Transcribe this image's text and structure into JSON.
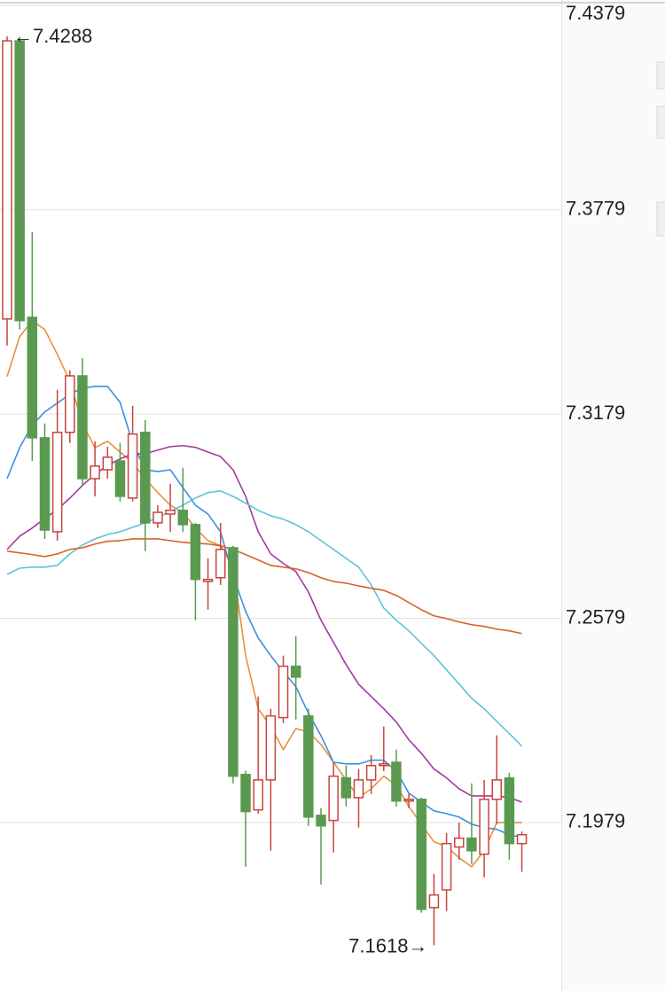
{
  "chart_data": {
    "type": "candlestick",
    "ylim": [
      7.1484,
      7.4395
    ],
    "yticks": [
      7.4379,
      7.3779,
      7.3179,
      7.2579,
      7.1979
    ],
    "grid": true,
    "up_color": "#c8443c",
    "down_color": "#5a9a50",
    "open": [
      7.3458,
      7.4275,
      7.3463,
      7.3109,
      7.2833,
      7.3125,
      7.3291,
      7.2989,
      7.3015,
      7.3041,
      7.2932,
      7.3125,
      7.2859,
      7.2885,
      7.2896,
      7.2854,
      7.2687,
      7.2698,
      7.2786,
      7.212,
      7.2016,
      7.2104,
      7.2287,
      7.2438,
      7.2292,
      7.2,
      7.1985,
      7.211,
      7.2052,
      7.2104,
      7.2146,
      7.2156,
      7.2042,
      7.2047,
      7.1729,
      7.1781,
      7.1907,
      7.1933,
      7.1886,
      7.2047,
      7.211,
      7.1917
    ],
    "high": [
      7.4288,
      7.428,
      7.3713,
      7.3151,
      7.325,
      7.3307,
      7.3343,
      7.3099,
      7.3083,
      7.3094,
      7.3203,
      7.3161,
      7.2911,
      7.2974,
      7.3021,
      7.2859,
      7.2755,
      7.2859,
      7.2792,
      7.2131,
      7.2349,
      7.2313,
      7.2469,
      7.2526,
      7.2313,
      7.2021,
      7.2156,
      7.2146,
      7.2136,
      7.2177,
      7.2261,
      7.2193,
      7.2063,
      7.2052,
      7.1828,
      7.1948,
      7.1979,
      7.2094,
      7.2104,
      7.2235,
      7.2125,
      7.1953
    ],
    "low": [
      7.338,
      7.3427,
      7.3041,
      7.2812,
      7.2807,
      7.3094,
      7.2969,
      7.2937,
      7.2989,
      7.2922,
      7.2922,
      7.2776,
      7.2844,
      7.2833,
      7.2833,
      7.2573,
      7.2604,
      7.2677,
      7.2094,
      7.1849,
      7.2005,
      7.1896,
      7.2271,
      7.2281,
      7.1969,
      7.1797,
      7.1891,
      7.2026,
      7.1964,
      7.2063,
      7.213,
      7.2026,
      7.2021,
      7.1714,
      7.1618,
      7.1719,
      7.187,
      7.1857,
      7.1818,
      7.1974,
      7.187,
      7.1834
    ],
    "close": [
      7.4275,
      7.3453,
      7.3109,
      7.2838,
      7.3125,
      7.3291,
      7.2989,
      7.3026,
      7.3052,
      7.2937,
      7.312,
      7.2859,
      7.289,
      7.2896,
      7.2854,
      7.2693,
      7.2693,
      7.2781,
      7.2115,
      7.2011,
      7.2104,
      7.2292,
      7.2438,
      7.2406,
      7.1995,
      7.1969,
      7.2115,
      7.2052,
      7.2104,
      7.2146,
      7.2151,
      7.2042,
      7.2047,
      7.1724,
      7.1766,
      7.1917,
      7.1933,
      7.1896,
      7.2047,
      7.2104,
      7.1917,
      7.1943
    ],
    "series": [
      {
        "color": "#e8913a",
        "values": [
          7.3289,
          7.3406,
          7.3453,
          7.3427,
          7.3354,
          7.3276,
          7.3151,
          7.308,
          7.3099,
          7.3067,
          7.3036,
          7.2989,
          7.2948,
          7.2911,
          7.289,
          7.2844,
          7.2807,
          7.2792,
          7.2729,
          7.2469,
          7.2313,
          7.2261,
          7.2193,
          7.2255,
          7.2245,
          7.2208,
          7.2156,
          7.2104,
          7.2052,
          7.2078,
          7.2115,
          7.2089,
          7.2026,
          7.1974,
          7.1922,
          7.1909,
          7.1875,
          7.1849,
          7.1896,
          7.1979,
          7.1979,
          7.1979
        ]
      },
      {
        "color": "#3d8fe0",
        "values": [
          7.2989,
          7.308,
          7.3146,
          7.3185,
          7.3211,
          7.3237,
          7.3255,
          7.326,
          7.326,
          7.3213,
          7.3094,
          7.3015,
          7.301,
          7.3015,
          7.2963,
          7.2911,
          7.2885,
          7.2833,
          7.2703,
          7.2599,
          7.2521,
          7.2469,
          7.2422,
          7.2378,
          7.23,
          7.2234,
          7.2156,
          7.2151,
          7.2151,
          7.2162,
          7.2162,
          7.213,
          7.2065,
          7.2039,
          7.2013,
          7.2005,
          7.1995,
          7.1974,
          7.1964,
          7.1959,
          7.1943,
          7.1935
        ]
      },
      {
        "color": "#a23aa0",
        "values": [
          7.2781,
          7.282,
          7.2844,
          7.2872,
          7.2898,
          7.2932,
          7.2969,
          7.3002,
          7.3028,
          7.3047,
          7.3062,
          7.3062,
          7.3073,
          7.3083,
          7.3086,
          7.3081,
          7.3067,
          7.3054,
          7.3015,
          7.2937,
          7.2833,
          7.2768,
          7.274,
          7.2716,
          7.2656,
          7.2573,
          7.2508,
          7.2443,
          7.2385,
          7.2349,
          7.2313,
          7.2274,
          7.2222,
          7.2182,
          7.2136,
          7.211,
          7.2078,
          7.2057,
          7.2057,
          7.2057,
          7.2052,
          7.2039
        ]
      },
      {
        "color": "#5bc4d8",
        "values": [
          7.2708,
          7.2726,
          7.2729,
          7.2729,
          7.2734,
          7.2768,
          7.2794,
          7.2812,
          7.2825,
          7.2833,
          7.2846,
          7.2859,
          7.2875,
          7.2893,
          7.2911,
          7.2932,
          7.2948,
          7.2953,
          7.2937,
          7.2917,
          7.2896,
          7.288,
          7.287,
          7.2854,
          7.2833,
          7.2807,
          7.2781,
          7.2755,
          7.2729,
          7.2677,
          7.2609,
          7.2573,
          7.2542,
          7.2505,
          7.2469,
          7.2427,
          7.2386,
          7.2344,
          7.2313,
          7.2276,
          7.224,
          7.2203
        ]
      },
      {
        "color": "#d8622a",
        "values": [
          7.2776,
          7.2771,
          7.2766,
          7.276,
          7.2768,
          7.2781,
          7.2786,
          7.2797,
          7.2805,
          7.2807,
          7.2812,
          7.2812,
          7.2812,
          7.2807,
          7.2802,
          7.2799,
          7.2797,
          7.2792,
          7.2781,
          7.2766,
          7.275,
          7.2734,
          7.2729,
          7.2724,
          7.2713,
          7.2698,
          7.2687,
          7.2682,
          7.2674,
          7.2667,
          7.2661,
          7.2646,
          7.2625,
          7.2604,
          7.2586,
          7.2578,
          7.2568,
          7.256,
          7.2555,
          7.2547,
          7.2542,
          7.2534
        ]
      }
    ],
    "annotations": [
      {
        "text": "←7.4288",
        "index": 0,
        "value": 7.4288
      },
      {
        "text": "7.1618→",
        "index": 34,
        "value": 7.1618
      }
    ]
  }
}
